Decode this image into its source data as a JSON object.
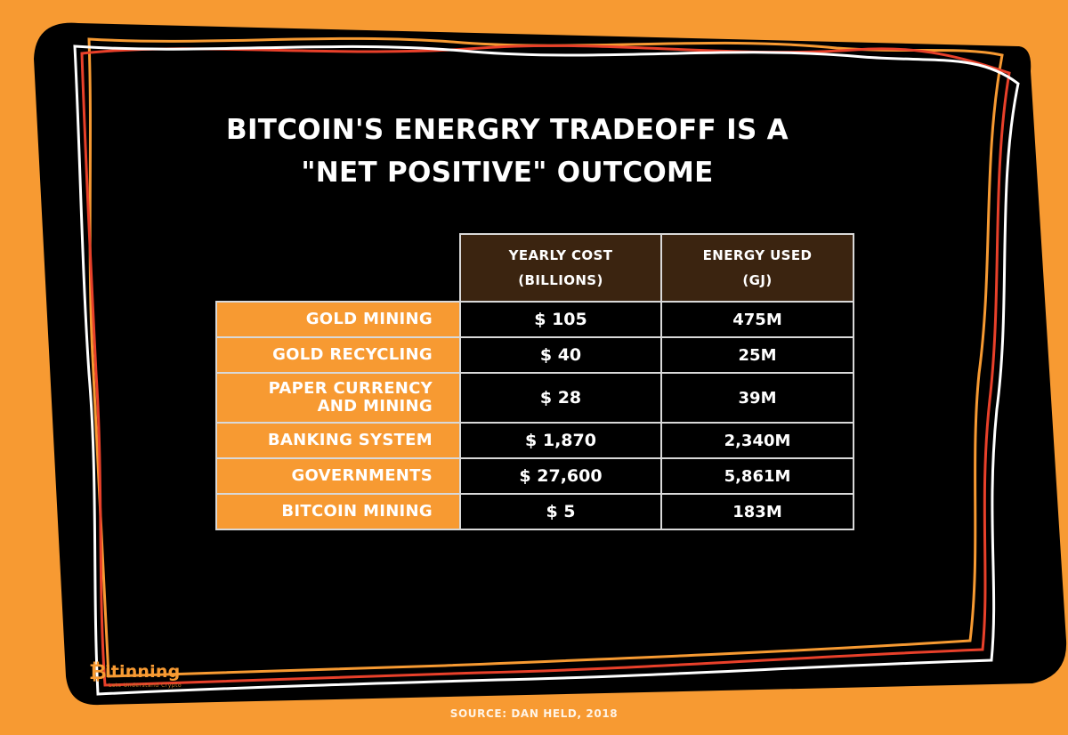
{
  "title": {
    "brand": "BITCOIN'S",
    "rest_line1": " ENERGRY TRADEOFF IS A",
    "line2": "\"NET POSITIVE\" OUTCOME"
  },
  "colors": {
    "background": "#f79a32",
    "panel": "#000000",
    "header_bg": "#3b2410",
    "label_bg": "#f79a32",
    "frame_lines": [
      "#ffffff",
      "#e8402a",
      "#f79a32"
    ]
  },
  "chart_data": {
    "type": "table",
    "columns": [
      {
        "line1": "YEARLY COST",
        "line2": "(BILLIONS)"
      },
      {
        "line1": "ENERGY USED",
        "line2": "(GJ)"
      }
    ],
    "rows": [
      {
        "label_lines": [
          "GOLD MINING"
        ],
        "cost": "$ 105",
        "energy": "475M",
        "cost_value": 105,
        "energy_value": 475
      },
      {
        "label_lines": [
          "GOLD RECYCLING"
        ],
        "cost": "$ 40",
        "energy": "25M",
        "cost_value": 40,
        "energy_value": 25
      },
      {
        "label_lines": [
          "PAPER CURRENCY",
          "AND MINING"
        ],
        "cost": "$ 28",
        "energy": "39M",
        "cost_value": 28,
        "energy_value": 39
      },
      {
        "label_lines": [
          "BANKING SYSTEM"
        ],
        "cost": "$ 1,870",
        "energy": "2,340M",
        "cost_value": 1870,
        "energy_value": 2340
      },
      {
        "label_lines": [
          "GOVERNMENTS"
        ],
        "cost": "$ 27,600",
        "energy": "5,861M",
        "cost_value": 27600,
        "energy_value": 5861
      },
      {
        "label_lines": [
          "BITCOIN MINING"
        ],
        "cost": "$ 5",
        "energy": "183M",
        "cost_value": 5,
        "energy_value": 183
      }
    ]
  },
  "logo": {
    "letter": "₿",
    "word": "itinning",
    "tagline": "Lets Understand Crypto"
  },
  "source": "SOURCE: DAN HELD, 2018"
}
